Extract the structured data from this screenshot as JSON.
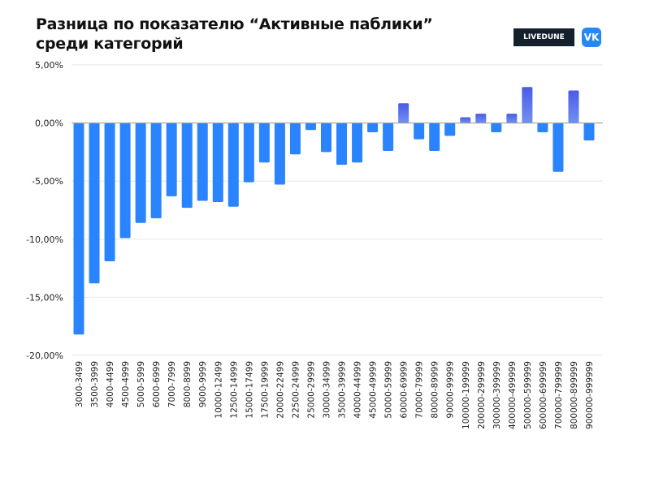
{
  "title_line1": "Разница по показателю “Активные паблики”",
  "title_line2": "среди категорий",
  "brand": {
    "livedune": "LIVEDUNE",
    "vk": "VK"
  },
  "colors": {
    "negative": "#2a84ff",
    "positive_top": "#4a5be6",
    "positive_bottom": "#7191f2",
    "grid": "#e6e6e6",
    "zero_line": "#999999"
  },
  "chart_data": {
    "type": "bar",
    "title": "Разница по показателю “Активные паблики” среди категорий",
    "xlabel": "",
    "ylabel": "",
    "ylim": [
      -20,
      5
    ],
    "yticks": [
      5,
      0,
      -5,
      -10,
      -15,
      -20
    ],
    "ytick_labels": [
      "5,00%",
      "0,00%",
      "-5,00%",
      "-10,00%",
      "-15,00%",
      "-20,00%"
    ],
    "grid": true,
    "categories": [
      "3000-3499",
      "3500-3999",
      "4000-4499",
      "4500-4999",
      "5000-5999",
      "6000-6999",
      "7000-7999",
      "8000-8999",
      "9000-9999",
      "10000-12499",
      "12500-14999",
      "15000-17499",
      "17500-19999",
      "20000-22499",
      "22500-24999",
      "25000-29999",
      "30000-34999",
      "35000-39999",
      "40000-44999",
      "45000-49999",
      "50000-59999",
      "60000-69999",
      "70000-79999",
      "80000-89999",
      "90000-99999",
      "100000-199999",
      "200000-299999",
      "300000-399999",
      "400000-499999",
      "500000-599999",
      "600000-699999",
      "700000-799999",
      "800000-899999",
      "900000-999999"
    ],
    "values": [
      -18.2,
      -13.8,
      -11.9,
      -9.9,
      -8.6,
      -8.2,
      -6.3,
      -7.3,
      -6.7,
      -6.8,
      -7.2,
      -5.1,
      -3.4,
      -5.3,
      -2.7,
      -0.6,
      -2.5,
      -3.6,
      -3.4,
      -0.8,
      -2.4,
      1.7,
      -1.4,
      -2.4,
      -1.1,
      0.5,
      0.8,
      -0.8,
      0.8,
      3.1,
      -0.8,
      -4.2,
      2.8,
      -1.5
    ]
  }
}
